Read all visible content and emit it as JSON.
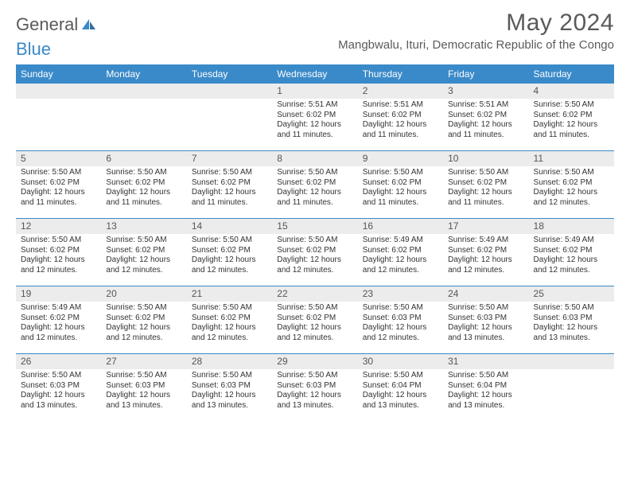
{
  "logo": {
    "text_a": "General",
    "text_b": "Blue"
  },
  "title": "May 2024",
  "subtitle": "Mangbwalu, Ituri, Democratic Republic of the Congo",
  "colors": {
    "header_bg": "#3a8ac9",
    "header_text": "#ffffff",
    "daynum_bg": "#ececec",
    "body_text": "#333333",
    "rule": "#3a8ac9"
  },
  "day_headers": [
    "Sunday",
    "Monday",
    "Tuesday",
    "Wednesday",
    "Thursday",
    "Friday",
    "Saturday"
  ],
  "weeks": [
    [
      null,
      null,
      null,
      {
        "n": "1",
        "sr": "5:51 AM",
        "ss": "6:02 PM",
        "dl": "12 hours and 11 minutes."
      },
      {
        "n": "2",
        "sr": "5:51 AM",
        "ss": "6:02 PM",
        "dl": "12 hours and 11 minutes."
      },
      {
        "n": "3",
        "sr": "5:51 AM",
        "ss": "6:02 PM",
        "dl": "12 hours and 11 minutes."
      },
      {
        "n": "4",
        "sr": "5:50 AM",
        "ss": "6:02 PM",
        "dl": "12 hours and 11 minutes."
      }
    ],
    [
      {
        "n": "5",
        "sr": "5:50 AM",
        "ss": "6:02 PM",
        "dl": "12 hours and 11 minutes."
      },
      {
        "n": "6",
        "sr": "5:50 AM",
        "ss": "6:02 PM",
        "dl": "12 hours and 11 minutes."
      },
      {
        "n": "7",
        "sr": "5:50 AM",
        "ss": "6:02 PM",
        "dl": "12 hours and 11 minutes."
      },
      {
        "n": "8",
        "sr": "5:50 AM",
        "ss": "6:02 PM",
        "dl": "12 hours and 11 minutes."
      },
      {
        "n": "9",
        "sr": "5:50 AM",
        "ss": "6:02 PM",
        "dl": "12 hours and 11 minutes."
      },
      {
        "n": "10",
        "sr": "5:50 AM",
        "ss": "6:02 PM",
        "dl": "12 hours and 11 minutes."
      },
      {
        "n": "11",
        "sr": "5:50 AM",
        "ss": "6:02 PM",
        "dl": "12 hours and 12 minutes."
      }
    ],
    [
      {
        "n": "12",
        "sr": "5:50 AM",
        "ss": "6:02 PM",
        "dl": "12 hours and 12 minutes."
      },
      {
        "n": "13",
        "sr": "5:50 AM",
        "ss": "6:02 PM",
        "dl": "12 hours and 12 minutes."
      },
      {
        "n": "14",
        "sr": "5:50 AM",
        "ss": "6:02 PM",
        "dl": "12 hours and 12 minutes."
      },
      {
        "n": "15",
        "sr": "5:50 AM",
        "ss": "6:02 PM",
        "dl": "12 hours and 12 minutes."
      },
      {
        "n": "16",
        "sr": "5:49 AM",
        "ss": "6:02 PM",
        "dl": "12 hours and 12 minutes."
      },
      {
        "n": "17",
        "sr": "5:49 AM",
        "ss": "6:02 PM",
        "dl": "12 hours and 12 minutes."
      },
      {
        "n": "18",
        "sr": "5:49 AM",
        "ss": "6:02 PM",
        "dl": "12 hours and 12 minutes."
      }
    ],
    [
      {
        "n": "19",
        "sr": "5:49 AM",
        "ss": "6:02 PM",
        "dl": "12 hours and 12 minutes."
      },
      {
        "n": "20",
        "sr": "5:50 AM",
        "ss": "6:02 PM",
        "dl": "12 hours and 12 minutes."
      },
      {
        "n": "21",
        "sr": "5:50 AM",
        "ss": "6:02 PM",
        "dl": "12 hours and 12 minutes."
      },
      {
        "n": "22",
        "sr": "5:50 AM",
        "ss": "6:02 PM",
        "dl": "12 hours and 12 minutes."
      },
      {
        "n": "23",
        "sr": "5:50 AM",
        "ss": "6:03 PM",
        "dl": "12 hours and 12 minutes."
      },
      {
        "n": "24",
        "sr": "5:50 AM",
        "ss": "6:03 PM",
        "dl": "12 hours and 13 minutes."
      },
      {
        "n": "25",
        "sr": "5:50 AM",
        "ss": "6:03 PM",
        "dl": "12 hours and 13 minutes."
      }
    ],
    [
      {
        "n": "26",
        "sr": "5:50 AM",
        "ss": "6:03 PM",
        "dl": "12 hours and 13 minutes."
      },
      {
        "n": "27",
        "sr": "5:50 AM",
        "ss": "6:03 PM",
        "dl": "12 hours and 13 minutes."
      },
      {
        "n": "28",
        "sr": "5:50 AM",
        "ss": "6:03 PM",
        "dl": "12 hours and 13 minutes."
      },
      {
        "n": "29",
        "sr": "5:50 AM",
        "ss": "6:03 PM",
        "dl": "12 hours and 13 minutes."
      },
      {
        "n": "30",
        "sr": "5:50 AM",
        "ss": "6:04 PM",
        "dl": "12 hours and 13 minutes."
      },
      {
        "n": "31",
        "sr": "5:50 AM",
        "ss": "6:04 PM",
        "dl": "12 hours and 13 minutes."
      },
      null
    ]
  ],
  "labels": {
    "sunrise": "Sunrise:",
    "sunset": "Sunset:",
    "daylight": "Daylight:"
  }
}
